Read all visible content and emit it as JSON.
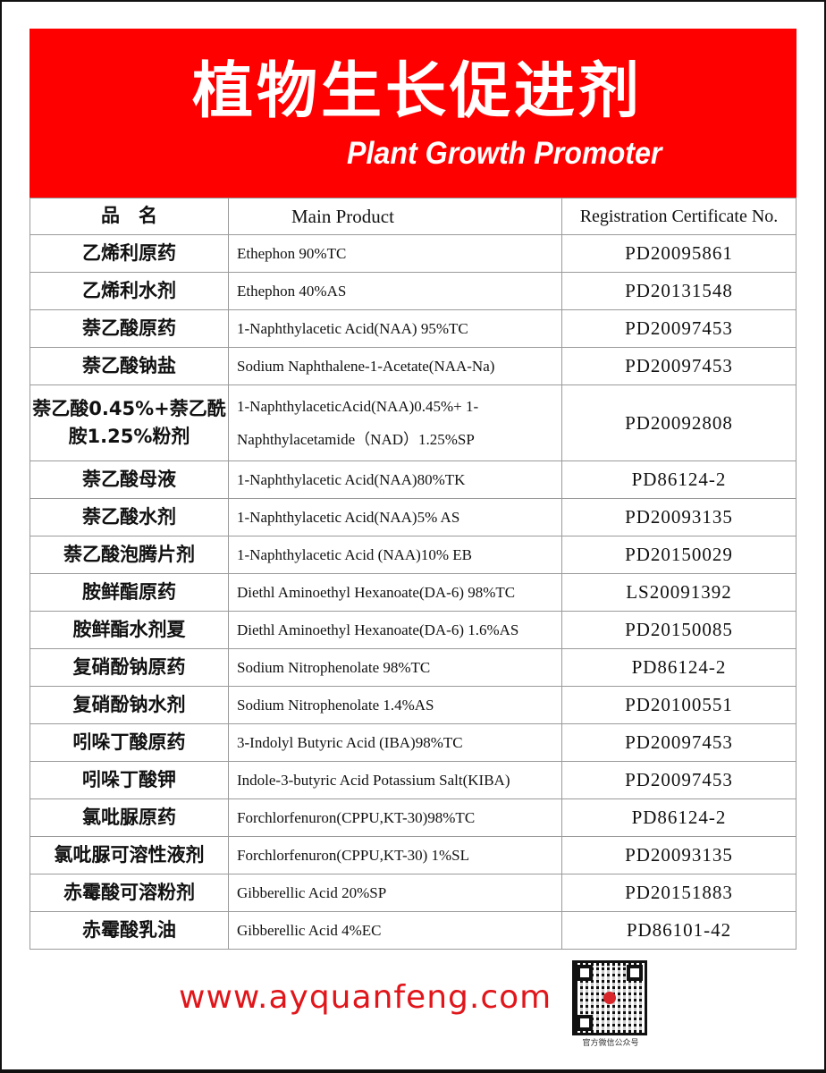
{
  "header": {
    "title_cn": "植物生长促进剂",
    "title_en": "Plant Growth Promoter",
    "accent_color": "#fe0000"
  },
  "table": {
    "columns": [
      "品　名",
      "Main Product",
      "Registration Certificate No."
    ],
    "rows": [
      {
        "name": "乙烯利原药",
        "product": "Ethephon 90%TC",
        "reg": "PD20095861"
      },
      {
        "name": "乙烯利水剂",
        "product": "Ethephon 40%AS",
        "reg": "PD20131548"
      },
      {
        "name": "萘乙酸原药",
        "product": "1-Naphthylacetic Acid(NAA) 95%TC",
        "reg": "PD20097453"
      },
      {
        "name": "萘乙酸钠盐",
        "product": "Sodium Naphthalene-1-Acetate(NAA-Na)",
        "reg": "PD20097453"
      },
      {
        "name": "萘乙酸0.45%+萘乙酰胺1.25%粉剂",
        "product": "1-NaphthylaceticAcid(NAA)0.45%+ 1-Naphthylacetamide（NAD）1.25%SP",
        "reg": "PD20092808"
      },
      {
        "name": "萘乙酸母液",
        "product": "1-Naphthylacetic Acid(NAA)80%TK",
        "reg": "PD86124-2"
      },
      {
        "name": "萘乙酸水剂",
        "product": "1-Naphthylacetic Acid(NAA)5% AS",
        "reg": "PD20093135"
      },
      {
        "name": "萘乙酸泡腾片剂",
        "product": "1-Naphthylacetic Acid (NAA)10% EB",
        "reg": "PD20150029"
      },
      {
        "name": "胺鲜酯原药",
        "product": "Diethl Aminoethyl Hexanoate(DA-6) 98%TC",
        "reg": "LS20091392"
      },
      {
        "name": "胺鲜酯水剂夏",
        "product": "Diethl Aminoethyl Hexanoate(DA-6) 1.6%AS",
        "reg": "PD20150085"
      },
      {
        "name": "复硝酚钠原药",
        "product": "Sodium Nitrophenolate 98%TC",
        "reg": "PD86124-2"
      },
      {
        "name": "复硝酚钠水剂",
        "product": "Sodium Nitrophenolate 1.4%AS",
        "reg": "PD20100551"
      },
      {
        "name": "吲哚丁酸原药",
        "product": "3-Indolyl Butyric Acid (IBA)98%TC",
        "reg": "PD20097453"
      },
      {
        "name": "吲哚丁酸钾",
        "product": "Indole-3-butyric Acid Potassium Salt(KIBA)",
        "reg": "PD20097453"
      },
      {
        "name": "氯吡脲原药",
        "product": "Forchlorfenuron(CPPU,KT-30)98%TC",
        "reg": "PD86124-2"
      },
      {
        "name": "氯吡脲可溶性液剂",
        "product": "Forchlorfenuron(CPPU,KT-30) 1%SL",
        "reg": "PD20093135"
      },
      {
        "name": "赤霉酸可溶粉剂",
        "product": "Gibberellic Acid 20%SP",
        "reg": "PD20151883"
      },
      {
        "name": "赤霉酸乳油",
        "product": "Gibberellic Acid 4%EC",
        "reg": "PD86101-42"
      }
    ]
  },
  "footer": {
    "url": "www.ayquanfeng.com",
    "qr_caption": "官方微信公众号"
  }
}
